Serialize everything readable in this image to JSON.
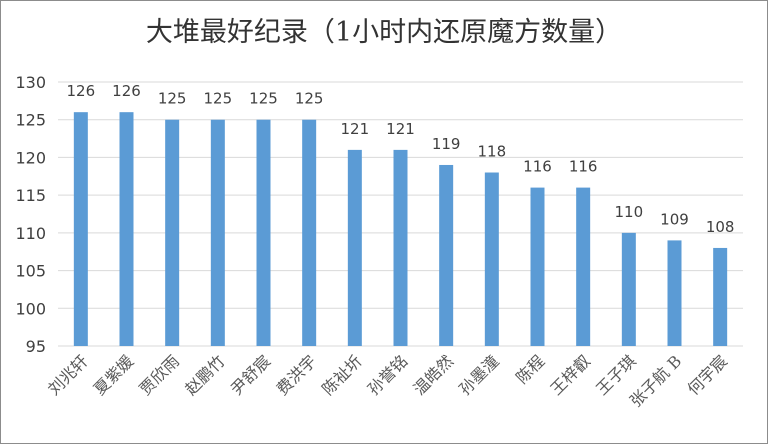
{
  "chart_data": {
    "type": "bar",
    "title": "大堆最好纪录（1小时内还原魔方数量）",
    "xlabel": "",
    "ylabel": "",
    "categories": [
      "刘兆轩",
      "夏紫媛",
      "贾欣雨",
      "赵鹏竹",
      "尹舒宸",
      "费洪宇",
      "陈祉圻",
      "孙誉铭",
      "温皓然",
      "孙墨潼",
      "陈程",
      "王梓叡",
      "王子琪",
      "张子航 B",
      "何宇宸"
    ],
    "values": [
      126,
      126,
      125,
      125,
      125,
      125,
      121,
      121,
      119,
      118,
      116,
      116,
      110,
      109,
      108
    ],
    "ylim": [
      95,
      130
    ],
    "yticks": [
      95,
      100,
      105,
      110,
      115,
      120,
      125,
      130
    ],
    "grid": true,
    "legend": "none",
    "bar_color": "#5b9bd5"
  }
}
